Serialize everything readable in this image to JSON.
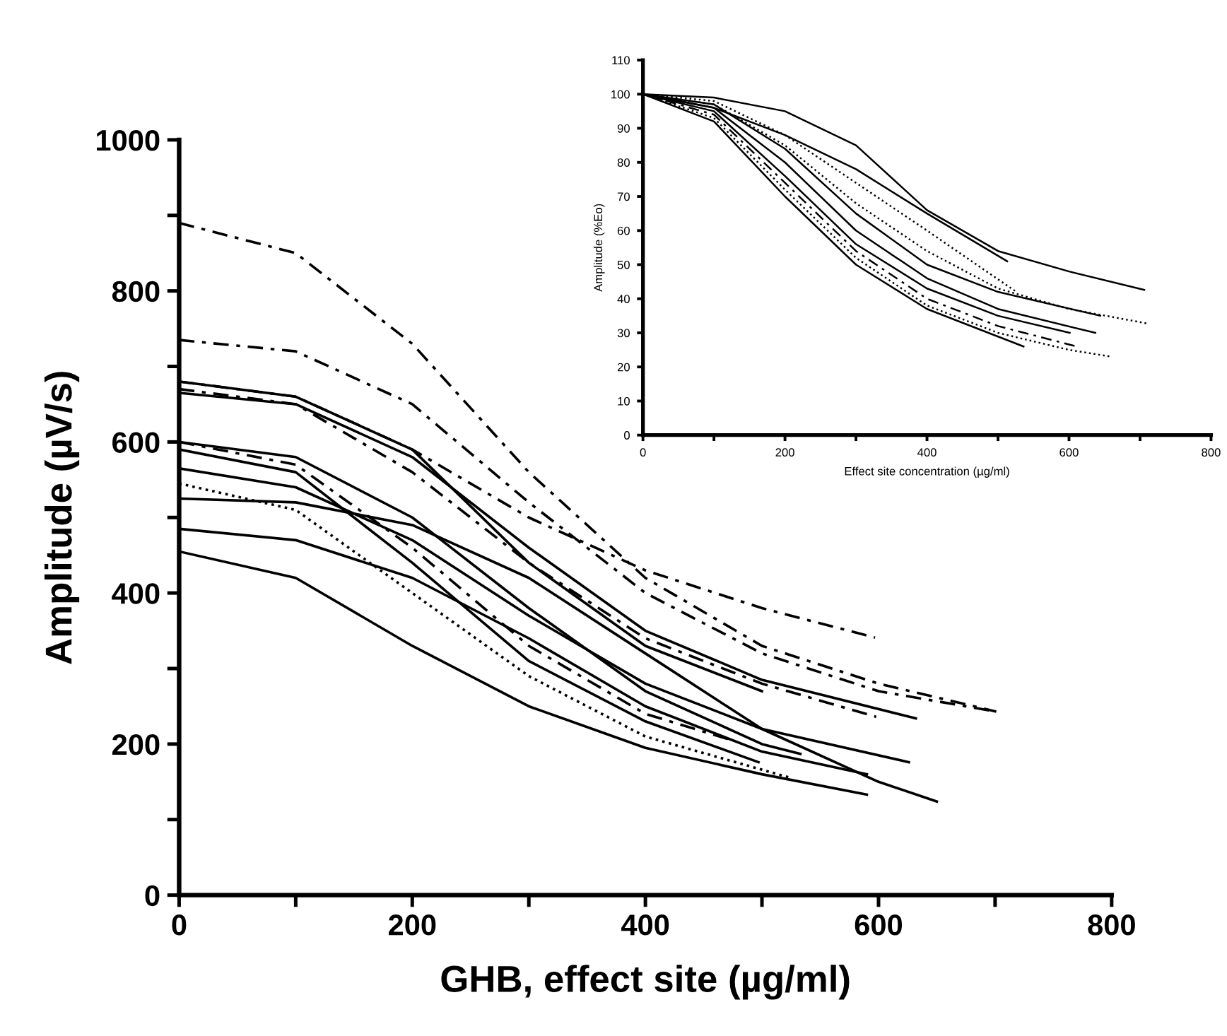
{
  "chart_data": [
    {
      "type": "line",
      "xlabel": "GHB, effect site (µg/ml)",
      "ylabel": "Amplitude (µV/s)",
      "xlim": [
        0,
        800
      ],
      "ylim": [
        0,
        1000
      ],
      "xticks": [
        0,
        {
          "value": 100,
          "label": null
        },
        200,
        {
          "value": 300,
          "label": null
        },
        400,
        {
          "value": 500,
          "label": null
        },
        600,
        {
          "value": 700,
          "label": null
        },
        800
      ],
      "yticks": [
        0,
        {
          "value": 100,
          "label": null
        },
        200,
        {
          "value": 300,
          "label": null
        },
        400,
        {
          "value": 500,
          "label": null
        },
        600,
        {
          "value": 700,
          "label": null
        },
        800,
        {
          "value": 900,
          "label": null
        },
        1000
      ],
      "grid": false,
      "series": [
        {
          "color": "#000000",
          "line_style": "dashed",
          "x": [
            0,
            100,
            200,
            300,
            400,
            500,
            600,
            701
          ],
          "values": [
            890,
            850,
            730,
            560,
            420,
            330,
            280,
            243
          ]
        },
        {
          "color": "#000000",
          "line_style": "dashed",
          "x": [
            0,
            100,
            200,
            300,
            400,
            500,
            600,
            701
          ],
          "values": [
            735,
            720,
            650,
            520,
            400,
            320,
            270,
            243
          ]
        },
        {
          "color": "#000000",
          "line_style": "dashed",
          "x": [
            0,
            100,
            200,
            300,
            400,
            500,
            597
          ],
          "values": [
            680,
            660,
            590,
            500,
            430,
            380,
            341
          ]
        },
        {
          "color": "#000000",
          "line_style": "solid",
          "x": [
            0,
            100,
            200,
            300,
            400,
            500
          ],
          "values": [
            680,
            660,
            590,
            440,
            330,
            270
          ]
        },
        {
          "color": "#000000",
          "line_style": "solid",
          "x": [
            0,
            100,
            200,
            300,
            400,
            500,
            632
          ],
          "values": [
            665,
            650,
            580,
            460,
            350,
            285,
            234
          ]
        },
        {
          "color": "#000000",
          "line_style": "dashed",
          "x": [
            0,
            100,
            200,
            300,
            400,
            500,
            598
          ],
          "values": [
            670,
            650,
            560,
            440,
            340,
            280,
            236
          ]
        },
        {
          "color": "#000000",
          "line_style": "dashed",
          "x": [
            0,
            100,
            200,
            300,
            400,
            472
          ],
          "values": [
            600,
            570,
            460,
            330,
            240,
            206
          ]
        },
        {
          "color": "#000000",
          "line_style": "solid",
          "x": [
            0,
            100,
            200,
            300,
            400,
            500,
            533
          ],
          "values": [
            600,
            580,
            500,
            380,
            270,
            200,
            187
          ]
        },
        {
          "color": "#000000",
          "line_style": "solid",
          "x": [
            0,
            100,
            200,
            300,
            400,
            497
          ],
          "values": [
            590,
            560,
            440,
            310,
            230,
            176
          ]
        },
        {
          "color": "#000000",
          "line_style": "solid",
          "x": [
            0,
            100,
            200,
            300,
            400,
            500,
            626
          ],
          "values": [
            565,
            540,
            470,
            370,
            280,
            220,
            176
          ]
        },
        {
          "color": "#000000",
          "line_style": "dotted",
          "x": [
            0,
            100,
            200,
            300,
            400,
            525
          ],
          "values": [
            545,
            510,
            400,
            290,
            210,
            155
          ]
        },
        {
          "color": "#000000",
          "line_style": "solid",
          "x": [
            0,
            100,
            200,
            300,
            400,
            500,
            600,
            650
          ],
          "values": [
            525,
            520,
            490,
            420,
            320,
            220,
            150,
            124
          ]
        },
        {
          "color": "#000000",
          "line_style": "solid",
          "x": [
            0,
            100,
            200,
            300,
            400,
            500,
            590
          ],
          "values": [
            485,
            470,
            420,
            340,
            250,
            190,
            160
          ]
        },
        {
          "color": "#000000",
          "line_style": "solid",
          "x": [
            0,
            100,
            200,
            300,
            400,
            500,
            590
          ],
          "values": [
            455,
            420,
            330,
            250,
            195,
            160,
            133
          ]
        }
      ]
    },
    {
      "type": "line",
      "xlabel": "Effect site concentration (µg/ml)",
      "ylabel": "Amplitude (%Eo)",
      "xlim": [
        0,
        800
      ],
      "ylim": [
        0,
        110
      ],
      "xticks": [
        0,
        {
          "value": 100,
          "label": null
        },
        200,
        {
          "value": 300,
          "label": null
        },
        400,
        {
          "value": 500,
          "label": null
        },
        600,
        {
          "value": 700,
          "label": null
        },
        800
      ],
      "yticks": [
        0,
        10,
        20,
        30,
        40,
        50,
        60,
        70,
        80,
        90,
        100,
        110
      ],
      "grid": false,
      "series": [
        {
          "color": "#000000",
          "line_style": "solid",
          "x": [
            0,
            100,
            200,
            300,
            400,
            500,
            600,
            706
          ],
          "values": [
            100,
            99,
            95,
            85,
            66,
            54,
            48,
            42.6
          ]
        },
        {
          "color": "#000000",
          "line_style": "solid",
          "x": [
            0,
            100,
            200,
            300,
            400,
            513
          ],
          "values": [
            100,
            96,
            88,
            78,
            65,
            51
          ]
        },
        {
          "color": "#000000",
          "line_style": "dotted",
          "x": [
            0,
            100,
            200,
            300,
            400,
            500,
            600,
            709
          ],
          "values": [
            100,
            97,
            85,
            68,
            54,
            43,
            37,
            32.8
          ]
        },
        {
          "color": "#000000",
          "line_style": "dotted",
          "x": [
            0,
            100,
            200,
            300,
            400,
            526
          ],
          "values": [
            100,
            98,
            88,
            74,
            60,
            42
          ]
        },
        {
          "color": "#000000",
          "line_style": "solid",
          "x": [
            0,
            100,
            200,
            300,
            400,
            500,
            644
          ],
          "values": [
            100,
            97,
            84,
            65,
            50,
            42,
            35
          ]
        },
        {
          "color": "#000000",
          "line_style": "solid",
          "x": [
            0,
            100,
            200,
            300,
            400,
            500,
            637
          ],
          "values": [
            100,
            96,
            80,
            60,
            46,
            37,
            30
          ]
        },
        {
          "color": "#000000",
          "line_style": "solid",
          "x": [
            0,
            100,
            200,
            300,
            400,
            500,
            601
          ],
          "values": [
            100,
            95,
            76,
            56,
            43,
            35,
            30
          ]
        },
        {
          "color": "#000000",
          "line_style": "dashed",
          "x": [
            0,
            100,
            200,
            300,
            400,
            500,
            611
          ],
          "values": [
            100,
            94,
            74,
            54,
            40,
            32,
            26
          ]
        },
        {
          "color": "#000000",
          "line_style": "dotted",
          "x": [
            0,
            100,
            200,
            300,
            400,
            500,
            600,
            660
          ],
          "values": [
            100,
            93,
            72,
            52,
            38,
            30,
            25,
            23
          ]
        },
        {
          "color": "#000000",
          "line_style": "solid",
          "x": [
            0,
            100,
            200,
            300,
            400,
            536
          ],
          "values": [
            100,
            92,
            70,
            50,
            37,
            26
          ]
        }
      ]
    }
  ]
}
